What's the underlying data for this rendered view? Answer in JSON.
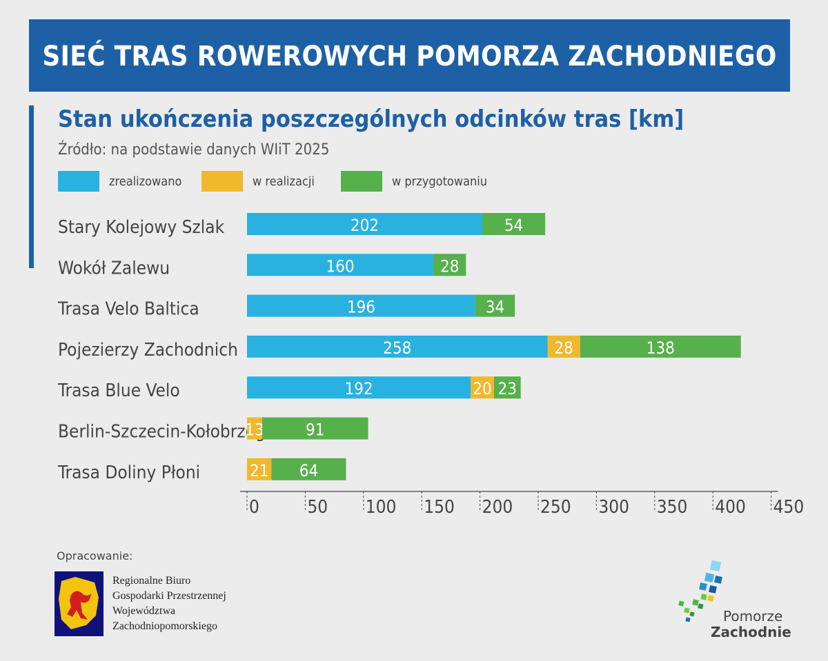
{
  "header": {
    "title": "SIEĆ TRAS ROWEROWYCH POMORZA ZACHODNIEGO"
  },
  "chart_data": {
    "type": "bar",
    "orientation": "horizontal",
    "stacked": true,
    "title": "Stan ukończenia poszczególnych odcinków tras [km]",
    "subtitle": "Źródło: na podstawie danych WIiT 2025",
    "categories": [
      "Stary Kolejowy Szlak",
      "Wokół Zalewu",
      "Trasa Velo Baltica",
      "Pojezierzy Zachodnich",
      "Trasa Blue Velo",
      "Berlin-Szczecin-Kołobrzeg",
      "Trasa Doliny Płoni"
    ],
    "series": [
      {
        "name": "zrealizowano",
        "color": "#29b1e0",
        "values": [
          202,
          160,
          196,
          258,
          192,
          0,
          0
        ]
      },
      {
        "name": "w realizacji",
        "color": "#f0b82d",
        "values": [
          0,
          0,
          0,
          28,
          20,
          13,
          21
        ]
      },
      {
        "name": "w przygotowaniu",
        "color": "#56b04c",
        "values": [
          54,
          28,
          34,
          138,
          23,
          91,
          64
        ]
      }
    ],
    "xlim": [
      0,
      450
    ],
    "xticks": [
      "0",
      "50",
      "100",
      "150",
      "200",
      "250",
      "300",
      "350",
      "400",
      "450"
    ],
    "legend_position": "top"
  },
  "credits": {
    "label": "Opracowanie:",
    "agency": [
      "Regionalne Biuro",
      "Gospodarki Przestrzennej",
      "Województwa",
      "Zachodniopomorskiego"
    ],
    "logo_name_top": "Pomorze",
    "logo_name_bottom": "Zachodnie"
  }
}
